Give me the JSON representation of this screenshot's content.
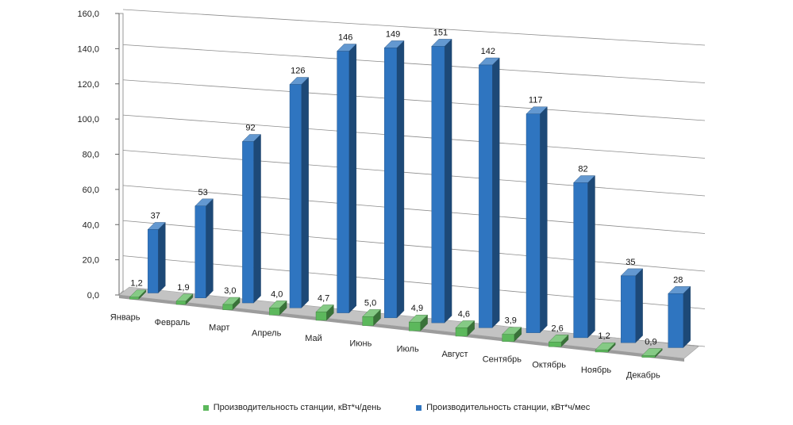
{
  "chart_data": {
    "type": "bar",
    "subtype": "3d-clustered-column",
    "categories": [
      "Январь",
      "Февраль",
      "Март",
      "Апрель",
      "Май",
      "Июнь",
      "Июль",
      "Август",
      "Сентябрь",
      "Октябрь",
      "Ноябрь",
      "Декабрь"
    ],
    "series": [
      {
        "name": "Производительность станции, кВт*ч/день",
        "color": "#5cb85c",
        "values": [
          1.2,
          1.9,
          3.0,
          4.0,
          4.7,
          5.0,
          4.9,
          4.6,
          3.9,
          2.6,
          1.2,
          0.9
        ],
        "labels": [
          "1,2",
          "1,9",
          "3,0",
          "4,0",
          "4,7",
          "5,0",
          "4,9",
          "4,6",
          "3,9",
          "2,6",
          "1,2",
          "0,9"
        ]
      },
      {
        "name": "Производительность станции, кВт*ч/мес",
        "color": "#2f75c0",
        "values": [
          37,
          53,
          92,
          126,
          146,
          149,
          151,
          142,
          117,
          82,
          35,
          28
        ],
        "labels": [
          "37",
          "53",
          "92",
          "126",
          "146",
          "149",
          "151",
          "142",
          "117",
          "82",
          "35",
          "28"
        ]
      }
    ],
    "ylim": [
      0,
      160
    ],
    "yticks": [
      0,
      20,
      40,
      60,
      80,
      100,
      120,
      140,
      160
    ],
    "ytick_labels": [
      "0,0",
      "20,0",
      "40,0",
      "60,0",
      "80,0",
      "100,0",
      "120,0",
      "140,0",
      "160,0"
    ],
    "grid": true,
    "legend_position": "bottom"
  }
}
